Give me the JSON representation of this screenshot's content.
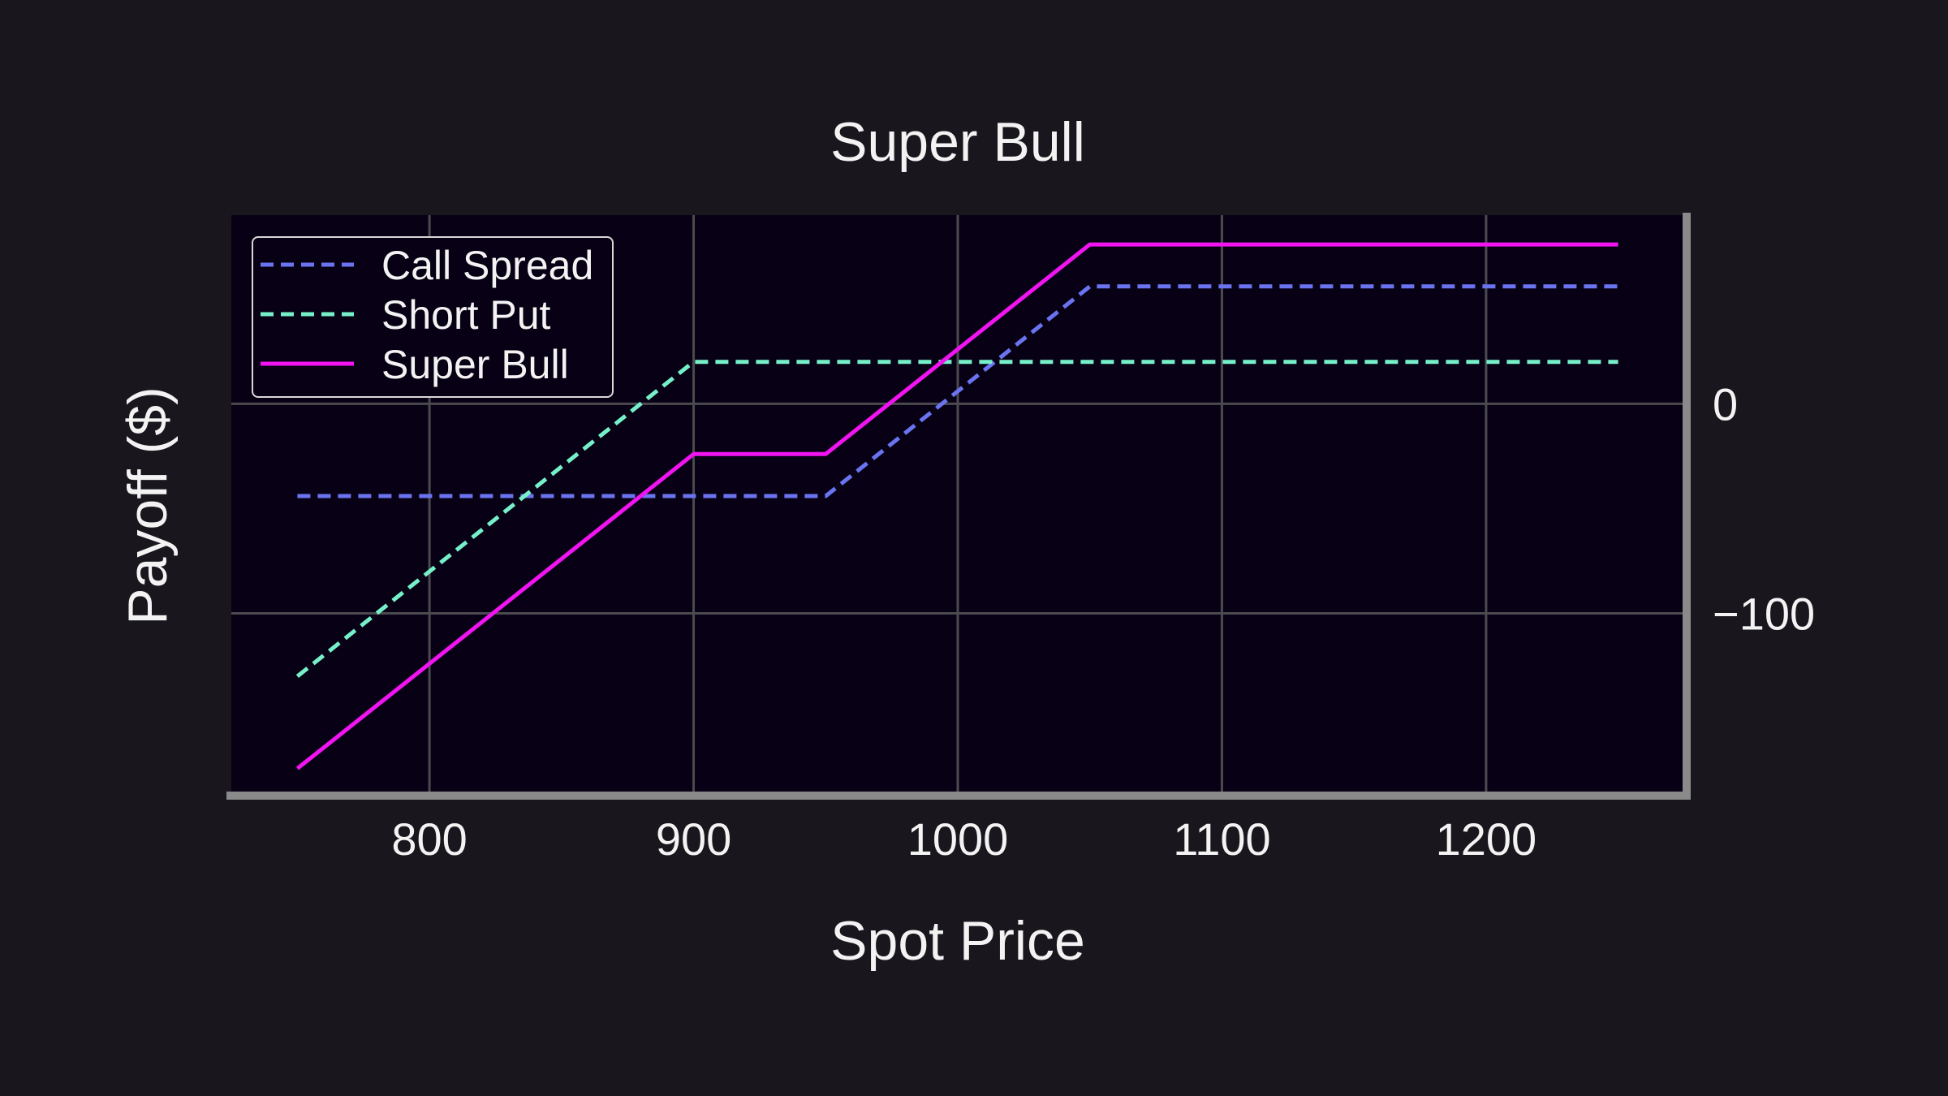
{
  "chart_data": {
    "type": "line",
    "title": "Super Bull",
    "xlabel": "Spot Price",
    "ylabel": "Payoff ($)",
    "xlim": [
      725,
      1275
    ],
    "ylim": [
      -185,
      90
    ],
    "x_ticks": [
      800,
      900,
      1000,
      1100,
      1200
    ],
    "x_tick_labels": [
      "800",
      "900",
      "1000",
      "1100",
      "1200"
    ],
    "y_ticks": [
      0,
      -100
    ],
    "y_tick_labels": [
      "0",
      "−100"
    ],
    "y_axis_side": "right",
    "grid": true,
    "legend_position": "top-left",
    "x": [
      750,
      900,
      950,
      1050,
      1250
    ],
    "series": [
      {
        "name": "Call Spread",
        "style": "dashed",
        "color": "#6b74f0",
        "values": [
          -44,
          -44,
          -44,
          56,
          56
        ]
      },
      {
        "name": "Short Put",
        "style": "dashed",
        "color": "#76f0c8",
        "values": [
          -130,
          20,
          20,
          20,
          20
        ]
      },
      {
        "name": "Super Bull",
        "style": "solid",
        "color": "#f014f0",
        "values": [
          -174,
          -24,
          -24,
          76,
          76
        ]
      }
    ]
  },
  "colors": {
    "page_background": "#19171d",
    "plot_background": "#080014",
    "grid": "#4a4a4f",
    "axis_spine": "#8a8a8a",
    "text": "#f3f3f3"
  }
}
